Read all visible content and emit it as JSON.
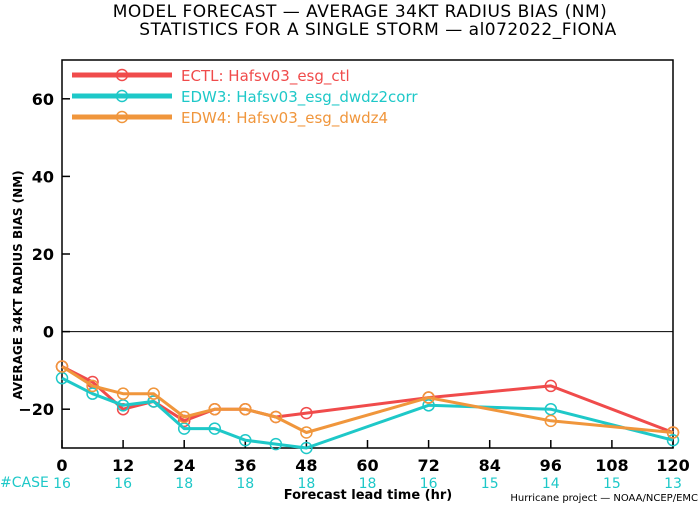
{
  "chart_data": {
    "type": "line",
    "title": [
      "MODEL FORECAST — AVERAGE 34KT RADIUS BIAS (NM)",
      "STATISTICS FOR A SINGLE STORM — al072022_FIONA"
    ],
    "xlabel": "Forecast lead time (hr)",
    "ylabel": "AVERAGE 34KT RADIUS BIAS (NM)",
    "xlim": [
      0,
      120
    ],
    "ylim": [
      -30,
      70
    ],
    "xticks": [
      0,
      12,
      24,
      36,
      48,
      60,
      72,
      84,
      96,
      108,
      120
    ],
    "yticks": [
      -20,
      0,
      20,
      40,
      60
    ],
    "ytick_labels": [
      "−20",
      "0",
      "20",
      "40",
      "60"
    ],
    "zero_line": true,
    "legend_position": "top-left",
    "case_label": "#CASE",
    "case_counts": [
      "16",
      "16",
      "18",
      "18",
      "18",
      "18",
      "16",
      "15",
      "14",
      "15",
      "13"
    ],
    "credit": "Hurricane project — NOAA/NCEP/EMC",
    "series": [
      {
        "name": "ECTL: Hafsv03_esg_ctl",
        "color": "#f04b4b",
        "points": [
          [
            0,
            -9
          ],
          [
            6,
            -13
          ],
          [
            12,
            -20
          ],
          [
            18,
            -18
          ],
          [
            24,
            -23
          ],
          [
            30,
            -20
          ],
          [
            36,
            -20
          ],
          [
            42,
            -22
          ],
          [
            48,
            -21
          ],
          [
            72,
            -17
          ],
          [
            96,
            -14
          ],
          [
            120,
            -26
          ]
        ]
      },
      {
        "name": "EDW3: Hafsv03_esg_dwdz2corr",
        "color": "#1ec8c8",
        "points": [
          [
            0,
            -12
          ],
          [
            6,
            -16
          ],
          [
            12,
            -19
          ],
          [
            18,
            -18
          ],
          [
            24,
            -25
          ],
          [
            30,
            -25
          ],
          [
            36,
            -28
          ],
          [
            42,
            -29
          ],
          [
            48,
            -30
          ],
          [
            72,
            -19
          ],
          [
            96,
            -20
          ],
          [
            120,
            -28
          ]
        ]
      },
      {
        "name": "EDW4: Hafsv03_esg_dwdz4",
        "color": "#f0963c",
        "points": [
          [
            0,
            -9
          ],
          [
            6,
            -14
          ],
          [
            12,
            -16
          ],
          [
            18,
            -16
          ],
          [
            24,
            -22
          ],
          [
            30,
            -20
          ],
          [
            36,
            -20
          ],
          [
            42,
            -22
          ],
          [
            48,
            -26
          ],
          [
            72,
            -17
          ],
          [
            96,
            -23
          ],
          [
            120,
            -26
          ]
        ]
      }
    ]
  }
}
